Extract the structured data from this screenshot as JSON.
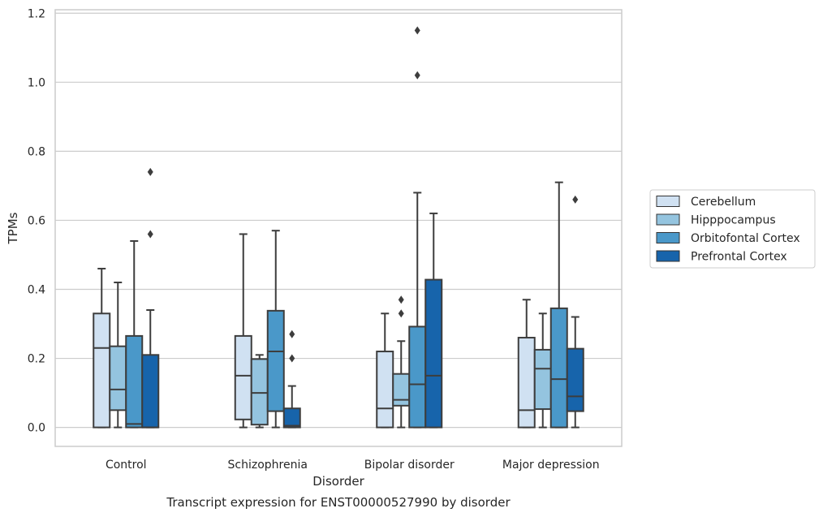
{
  "chart_data": {
    "type": "box",
    "title": "",
    "caption": "Transcript expression for ENST00000527990 by disorder",
    "xlabel": "Disorder",
    "ylabel": "TPMs",
    "ylim": [
      -0.055,
      1.21
    ],
    "yticks": [
      "0.0",
      "0.2",
      "0.4",
      "0.6",
      "0.8",
      "1.0",
      "1.2"
    ],
    "ytick_values": [
      0.0,
      0.2,
      0.4,
      0.6,
      0.8,
      1.0,
      1.2
    ],
    "grid": "horizontal",
    "legend_position": "right",
    "categories": [
      "Control",
      "Schizophrenia",
      "Bipolar disorder",
      "Major depression"
    ],
    "series": [
      {
        "name": "Cerebellum",
        "color": "#d0e1f2",
        "boxes": [
          {
            "whisker_low": 0.0,
            "q1": 0.0,
            "median": 0.23,
            "q3": 0.33,
            "whisker_high": 0.46,
            "outliers": []
          },
          {
            "whisker_low": 0.0,
            "q1": 0.023,
            "median": 0.15,
            "q3": 0.265,
            "whisker_high": 0.56,
            "outliers": []
          },
          {
            "whisker_low": 0.0,
            "q1": 0.0,
            "median": 0.055,
            "q3": 0.22,
            "whisker_high": 0.33,
            "outliers": []
          },
          {
            "whisker_low": 0.0,
            "q1": 0.0,
            "median": 0.05,
            "q3": 0.26,
            "whisker_high": 0.37,
            "outliers": []
          }
        ]
      },
      {
        "name": "Hipppocampus",
        "color": "#94c4df",
        "boxes": [
          {
            "whisker_low": 0.0,
            "q1": 0.05,
            "median": 0.11,
            "q3": 0.235,
            "whisker_high": 0.42,
            "outliers": []
          },
          {
            "whisker_low": 0.0,
            "q1": 0.008,
            "median": 0.1,
            "q3": 0.198,
            "whisker_high": 0.21,
            "outliers": []
          },
          {
            "whisker_low": 0.0,
            "q1": 0.063,
            "median": 0.08,
            "q3": 0.155,
            "whisker_high": 0.25,
            "outliers": [
              0.33,
              0.37
            ]
          },
          {
            "whisker_low": 0.0,
            "q1": 0.053,
            "median": 0.17,
            "q3": 0.225,
            "whisker_high": 0.33,
            "outliers": []
          }
        ]
      },
      {
        "name": "Orbitofontal Cortex",
        "color": "#4a98c9",
        "boxes": [
          {
            "whisker_low": 0.0,
            "q1": 0.0,
            "median": 0.01,
            "q3": 0.265,
            "whisker_high": 0.54,
            "outliers": []
          },
          {
            "whisker_low": 0.0,
            "q1": 0.047,
            "median": 0.22,
            "q3": 0.338,
            "whisker_high": 0.57,
            "outliers": []
          },
          {
            "whisker_low": 0.0,
            "q1": 0.0,
            "median": 0.125,
            "q3": 0.292,
            "whisker_high": 0.68,
            "outliers": [
              1.02,
              1.15
            ]
          },
          {
            "whisker_low": 0.0,
            "q1": 0.0,
            "median": 0.14,
            "q3": 0.345,
            "whisker_high": 0.71,
            "outliers": []
          }
        ]
      },
      {
        "name": "Prefrontal Cortex",
        "color": "#1764ab",
        "boxes": [
          {
            "whisker_low": 0.0,
            "q1": 0.0,
            "median": 0.0,
            "q3": 0.21,
            "whisker_high": 0.34,
            "outliers": [
              0.56,
              0.74
            ]
          },
          {
            "whisker_low": 0.0,
            "q1": 0.0,
            "median": 0.005,
            "q3": 0.055,
            "whisker_high": 0.12,
            "outliers": [
              0.2,
              0.27
            ]
          },
          {
            "whisker_low": 0.0,
            "q1": 0.0,
            "median": 0.15,
            "q3": 0.428,
            "whisker_high": 0.62,
            "outliers": []
          },
          {
            "whisker_low": 0.0,
            "q1": 0.047,
            "median": 0.09,
            "q3": 0.228,
            "whisker_high": 0.32,
            "outliers": [
              0.66
            ]
          }
        ]
      }
    ]
  }
}
